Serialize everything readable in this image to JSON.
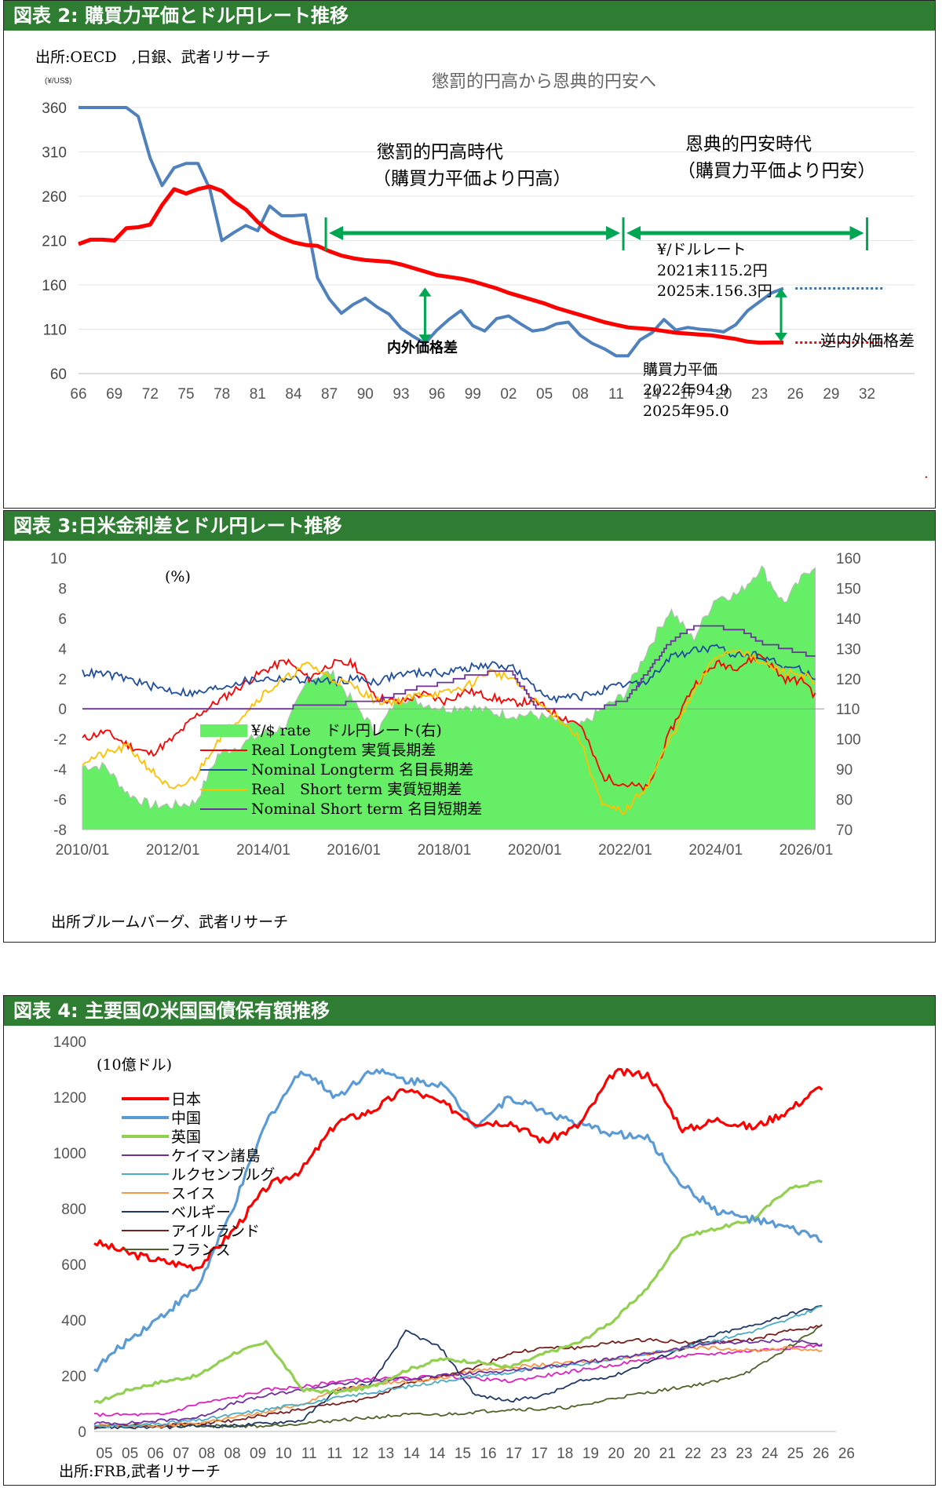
{
  "chart_data": [
    {
      "type": "line",
      "panel_title": "図表 2: 購買力平価とドル円レート推移",
      "source": "出所:OECD　,日銀、武者リサーチ",
      "unit": "(¥/US$)",
      "title": "懲罰的円高から恩典的円安へ",
      "xlim": [
        1966,
        2034
      ],
      "ylim": [
        60,
        360
      ],
      "yticks": [
        60,
        110,
        160,
        210,
        260,
        310,
        360
      ],
      "xtick_labels": [
        "66",
        "69",
        "72",
        "75",
        "78",
        "81",
        "84",
        "87",
        "90",
        "93",
        "96",
        "99",
        "02",
        "05",
        "08",
        "11",
        "14",
        "17",
        "20",
        "23",
        "26",
        "29",
        "32"
      ],
      "xtick_years": [
        1966,
        1969,
        1972,
        1975,
        1978,
        1981,
        1984,
        1987,
        1990,
        1993,
        1996,
        1999,
        2002,
        2005,
        2008,
        2011,
        2014,
        2017,
        2020,
        2023,
        2026,
        2029,
        2032
      ],
      "series": [
        {
          "name": "¥/ドルレート",
          "color": "#4f81bd",
          "x": [
            1966,
            1967,
            1968,
            1969,
            1970,
            1971,
            1972,
            1973,
            1974,
            1975,
            1976,
            1977,
            1978,
            1979,
            1980,
            1981,
            1982,
            1983,
            1984,
            1985,
            1986,
            1987,
            1988,
            1989,
            1990,
            1991,
            1992,
            1993,
            1994,
            1995,
            1996,
            1997,
            1998,
            1999,
            2000,
            2001,
            2002,
            2003,
            2004,
            2005,
            2006,
            2007,
            2008,
            2009,
            2010,
            2011,
            2012,
            2013,
            2014,
            2015,
            2016,
            2017,
            2018,
            2019,
            2020,
            2021,
            2022,
            2023,
            2024,
            2025
          ],
          "values": [
            360,
            360,
            360,
            360,
            360,
            350,
            303,
            272,
            292,
            297,
            297,
            268,
            210,
            219,
            227,
            221,
            249,
            238,
            238,
            239,
            168,
            144,
            128,
            138,
            145,
            135,
            127,
            111,
            102,
            94,
            109,
            121,
            131,
            114,
            108,
            122,
            125,
            116,
            108,
            110,
            116,
            118,
            103,
            94,
            88,
            80,
            80,
            98,
            106,
            121,
            109,
            112,
            110,
            109,
            107,
            115,
            131,
            141,
            151,
            156
          ]
        },
        {
          "name": "購買力平価",
          "color": "#ff0000",
          "x": [
            1966,
            1967,
            1968,
            1969,
            1970,
            1971,
            1972,
            1973,
            1974,
            1975,
            1976,
            1977,
            1978,
            1979,
            1980,
            1981,
            1982,
            1983,
            1984,
            1985,
            1986,
            1987,
            1988,
            1989,
            1990,
            1991,
            1992,
            1993,
            1994,
            1995,
            1996,
            1997,
            1998,
            1999,
            2000,
            2001,
            2002,
            2003,
            2004,
            2005,
            2006,
            2007,
            2008,
            2009,
            2010,
            2011,
            2012,
            2013,
            2014,
            2015,
            2016,
            2017,
            2018,
            2019,
            2020,
            2021,
            2022,
            2023,
            2024,
            2025
          ],
          "values": [
            206,
            211,
            211,
            210,
            224,
            225,
            228,
            250,
            268,
            263,
            268,
            271,
            266,
            254,
            245,
            231,
            220,
            213,
            208,
            205,
            204,
            198,
            193,
            190,
            188,
            187,
            186,
            183,
            179,
            175,
            171,
            169,
            167,
            164,
            160,
            156,
            151,
            147,
            143,
            139,
            134,
            130,
            126,
            122,
            118,
            115,
            112,
            111,
            110,
            108,
            106,
            105,
            104,
            103,
            101,
            99,
            96,
            94.9,
            95.0,
            95.0
          ]
        }
      ],
      "annotations": {
        "era1": "懲罰的円高時代",
        "era1_sub": "（購買力平価より円高）",
        "era2": "恩典的円安時代",
        "era2_sub": "（購買力平価より円安）",
        "gap": "内外価格差",
        "reverse_gap": "逆内外価格差",
        "rate_label": "¥/ドルレート",
        "rate_2021": "2021末115.2円",
        "rate_2025": "2025末.156.3円",
        "ppp_label": "購買力平価",
        "ppp_2022": "2022年94.9",
        "ppp_2025": "2025年95.0",
        "dot": "."
      },
      "colors": {
        "arrow": "#00a651",
        "rate_dotted": "#2e75b6",
        "ppp_dotted": "#ff0000"
      }
    },
    {
      "type": "area",
      "panel_title": "図表 3:日米金利差とドル円レート推移",
      "source": "出所ブルームバーグ、武者リサーチ",
      "unit_left": "(%)",
      "ylim_left": [
        -8,
        10
      ],
      "ylim_right": [
        70,
        160
      ],
      "yticks_left": [
        -8,
        -6,
        -4,
        -2,
        0,
        2,
        4,
        6,
        8,
        10
      ],
      "yticks_right": [
        70,
        80,
        90,
        100,
        110,
        120,
        130,
        140,
        150,
        160
      ],
      "xtick_labels": [
        "2010/01",
        "2012/01",
        "2014/01",
        "2016/01",
        "2018/01",
        "2020/01",
        "2022/01",
        "2024/01",
        "2026/01"
      ],
      "xlim": [
        2010.0,
        2026.4
      ],
      "x": [
        2010,
        2010.5,
        2011,
        2011.5,
        2012,
        2012.5,
        2013,
        2013.5,
        2014,
        2014.5,
        2015,
        2015.5,
        2016,
        2016.5,
        2017,
        2017.5,
        2018,
        2018.5,
        2019,
        2019.5,
        2020,
        2020.5,
        2021,
        2021.5,
        2022,
        2022.5,
        2023,
        2023.5,
        2024,
        2024.5,
        2025,
        2025.5,
        2026,
        2026.2
      ],
      "series": [
        {
          "name": "¥/$ rate　ドル円レート(右)",
          "axis": "right",
          "color": "#66ee66",
          "values": [
            91,
            91,
            82,
            78,
            78,
            79,
            95,
            98,
            102,
            104,
            120,
            122,
            112,
            102,
            114,
            112,
            110,
            111,
            109,
            108,
            108,
            106,
            104,
            110,
            115,
            130,
            143,
            133,
            147,
            148,
            157,
            145,
            155,
            158
          ]
        },
        {
          "name": "Real Longtem 実質長期差",
          "axis": "left",
          "color": "#ff0000",
          "values": [
            -2.0,
            -1.5,
            -2.4,
            -3.0,
            -2.0,
            -0.5,
            0.5,
            1.5,
            2.5,
            3.2,
            2.0,
            3.0,
            3.0,
            0.8,
            0.4,
            1.0,
            0.5,
            1.2,
            0.8,
            0.4,
            0.5,
            -0.4,
            -1.0,
            -4.5,
            -5.0,
            -5.3,
            -1.5,
            1.5,
            3.0,
            2.8,
            3.6,
            2.0,
            1.8,
            0.8
          ]
        },
        {
          "name": "Nominal Longterm 名目長期差",
          "axis": "left",
          "color": "#1f4e9e",
          "values": [
            2.4,
            2.3,
            2.0,
            1.5,
            1.2,
            1.0,
            1.4,
            1.8,
            2.0,
            2.0,
            1.9,
            1.8,
            2.0,
            1.8,
            2.3,
            2.4,
            2.4,
            2.7,
            2.9,
            2.8,
            1.3,
            0.7,
            0.8,
            1.2,
            1.6,
            1.8,
            3.4,
            3.9,
            4.0,
            3.6,
            3.6,
            2.8,
            2.5,
            2.0
          ]
        },
        {
          "name": "Real　Short term 実質短期差",
          "axis": "left",
          "color": "#ffc000",
          "values": [
            -3.5,
            -3.0,
            -2.5,
            -4.0,
            -5.5,
            -4.5,
            -2.0,
            -0.5,
            1.0,
            2.0,
            3.0,
            2.0,
            1.5,
            0.5,
            0.5,
            1.0,
            1.0,
            1.5,
            2.5,
            2.0,
            0.5,
            -0.5,
            -2.0,
            -6.5,
            -6.8,
            -5.0,
            -2.0,
            1.0,
            3.5,
            4.0,
            3.0,
            2.5,
            2.2,
            1.5
          ]
        },
        {
          "name": "Nominal Short term 名目短期差",
          "axis": "left",
          "color": "#7030a0",
          "values": [
            0.1,
            0.1,
            0.1,
            0.1,
            0.1,
            0.1,
            0.1,
            0.1,
            0.1,
            0.1,
            0.2,
            0.2,
            0.5,
            0.5,
            1.0,
            1.5,
            1.7,
            2.2,
            2.4,
            2.4,
            0.1,
            0.1,
            0.1,
            0.1,
            0.6,
            2.5,
            4.5,
            5.4,
            5.4,
            5.3,
            4.4,
            4.0,
            3.6,
            3.5
          ]
        }
      ]
    },
    {
      "type": "line",
      "panel_title": "図表 4: 主要国の米国国債保有額推移",
      "source": "出所:FRB,武者リサーチ",
      "unit": "(10億ドル)",
      "ylim": [
        0,
        1400
      ],
      "yticks": [
        0,
        200,
        400,
        600,
        800,
        1000,
        1200,
        1400
      ],
      "xtick_labels": [
        "05",
        "05",
        "06",
        "07",
        "08",
        "08",
        "09",
        "10",
        "11",
        "11",
        "12",
        "13",
        "14",
        "14",
        "15",
        "16",
        "17",
        "17",
        "18",
        "19",
        "20",
        "20",
        "21",
        "22",
        "23",
        "23",
        "24",
        "25",
        "26",
        "26"
      ],
      "xlim": [
        2005,
        2026.4
      ],
      "x": [
        2005,
        2006,
        2007,
        2008,
        2009,
        2010,
        2011,
        2012,
        2013,
        2014,
        2015,
        2016,
        2017,
        2018,
        2019,
        2020,
        2021,
        2022,
        2023,
        2024,
        2025,
        2026
      ],
      "series": [
        {
          "name": "日本",
          "color": "#ff0000",
          "values": [
            680,
            640,
            610,
            590,
            720,
            880,
            940,
            1110,
            1150,
            1230,
            1180,
            1110,
            1110,
            1040,
            1100,
            1290,
            1280,
            1080,
            1120,
            1090,
            1150,
            1240
          ]
        },
        {
          "name": "中国",
          "color": "#5b9bd5",
          "values": [
            220,
            330,
            420,
            520,
            800,
            1120,
            1300,
            1200,
            1300,
            1260,
            1250,
            1100,
            1200,
            1150,
            1100,
            1070,
            1050,
            880,
            790,
            760,
            730,
            690
          ]
        },
        {
          "name": "英国",
          "color": "#92d050",
          "values": [
            100,
            150,
            180,
            200,
            280,
            320,
            150,
            140,
            160,
            220,
            260,
            250,
            230,
            280,
            320,
            400,
            520,
            700,
            730,
            760,
            870,
            900
          ]
        },
        {
          "name": "ケイマン諸島",
          "color": "#7030a0",
          "values": [
            30,
            30,
            40,
            50,
            100,
            130,
            150,
            170,
            180,
            190,
            200,
            210,
            220,
            230,
            250,
            260,
            280,
            300,
            320,
            320,
            330,
            310
          ]
        },
        {
          "name": "ルクセンブルグ",
          "color": "#4bacc6",
          "values": [
            20,
            20,
            30,
            40,
            60,
            80,
            100,
            120,
            140,
            160,
            180,
            200,
            210,
            230,
            240,
            260,
            280,
            300,
            330,
            360,
            400,
            450
          ]
        },
        {
          "name": "スイス",
          "color": "#f79646",
          "values": [
            20,
            20,
            20,
            30,
            50,
            70,
            100,
            150,
            170,
            180,
            190,
            220,
            230,
            240,
            250,
            260,
            280,
            300,
            300,
            290,
            300,
            290
          ]
        },
        {
          "name": "ベルギー",
          "color": "#1f3864",
          "values": [
            15,
            15,
            15,
            20,
            20,
            30,
            40,
            150,
            170,
            360,
            300,
            130,
            110,
            130,
            180,
            200,
            250,
            300,
            350,
            380,
            420,
            450
          ]
        },
        {
          "name": "アイルランド",
          "color": "#7b1e1e",
          "values": [
            20,
            20,
            20,
            30,
            40,
            60,
            80,
            100,
            120,
            170,
            200,
            230,
            280,
            300,
            300,
            320,
            330,
            320,
            320,
            330,
            360,
            380
          ]
        },
        {
          "name": "フランス",
          "color": "#4f6228",
          "values": [
            20,
            20,
            20,
            20,
            20,
            20,
            30,
            40,
            50,
            60,
            60,
            70,
            80,
            80,
            90,
            120,
            140,
            160,
            180,
            220,
            300,
            380
          ]
        },
        {
          "name": "",
          "color": "#e020c0",
          "values": [
            60,
            60,
            60,
            100,
            120,
            150,
            160,
            180,
            190,
            190,
            200,
            190,
            180,
            200,
            220,
            240,
            260,
            270,
            280,
            290,
            300,
            310
          ]
        }
      ]
    }
  ],
  "stray_mark": "…"
}
